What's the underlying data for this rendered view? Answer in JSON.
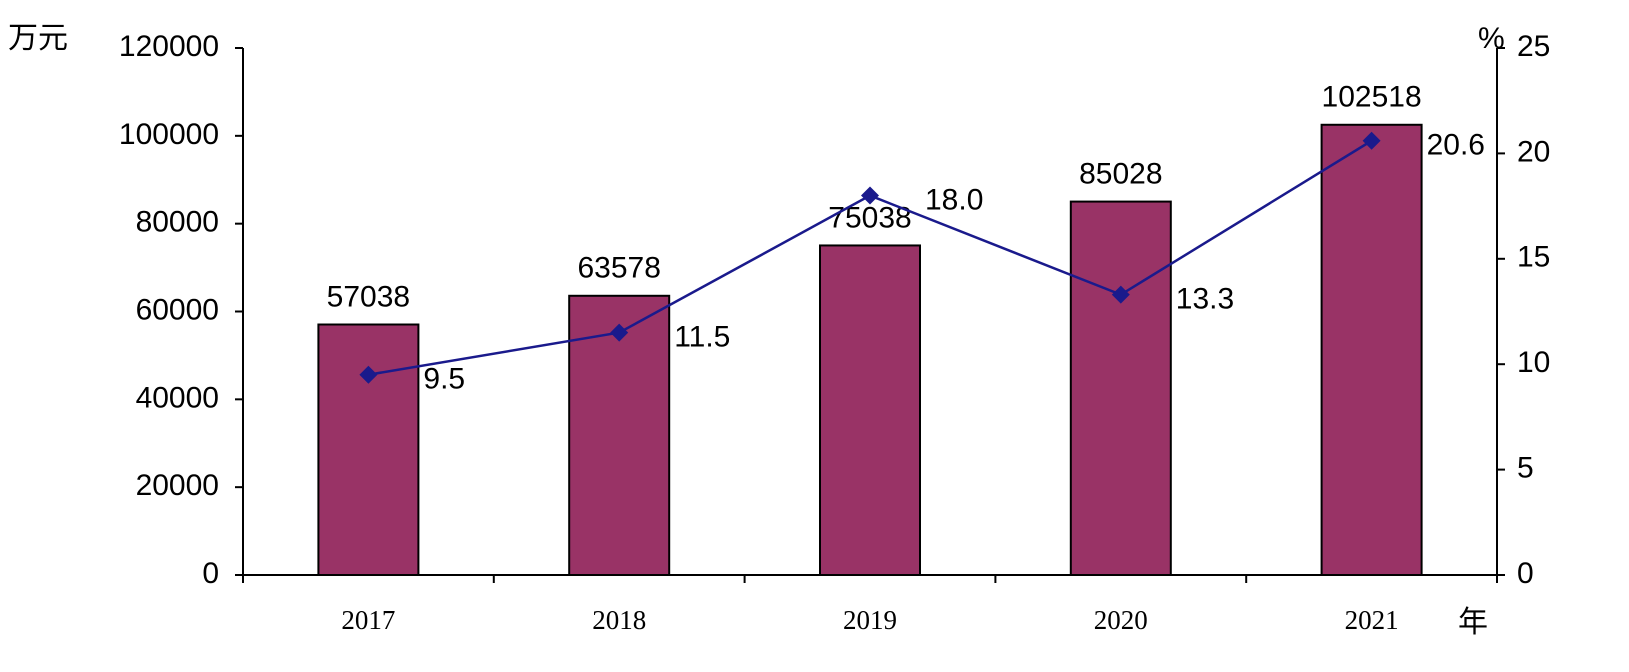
{
  "chart_data": {
    "type": "bar",
    "categories": [
      "2017",
      "2018",
      "2019",
      "2020",
      "2021"
    ],
    "series": [
      {
        "type": "bar",
        "color": "#993366",
        "values": [
          57038,
          63578,
          75038,
          85028,
          102518
        ]
      },
      {
        "type": "line",
        "axis": "y2",
        "color": "#1a1a8c",
        "values": [
          9.5,
          11.5,
          18.0,
          13.3,
          20.6
        ],
        "value_labels": [
          "9.5",
          "11.5",
          "18.0",
          "13.3",
          "20.6"
        ]
      }
    ],
    "ylabel": "万元",
    "y2label": "%",
    "xlabel": "年",
    "ylim": [
      0,
      120000
    ],
    "yticks": [
      0,
      20000,
      40000,
      60000,
      80000,
      100000,
      120000
    ],
    "y2lim": [
      0,
      25
    ],
    "y2ticks": [
      0,
      5,
      10,
      15,
      20,
      25
    ]
  }
}
